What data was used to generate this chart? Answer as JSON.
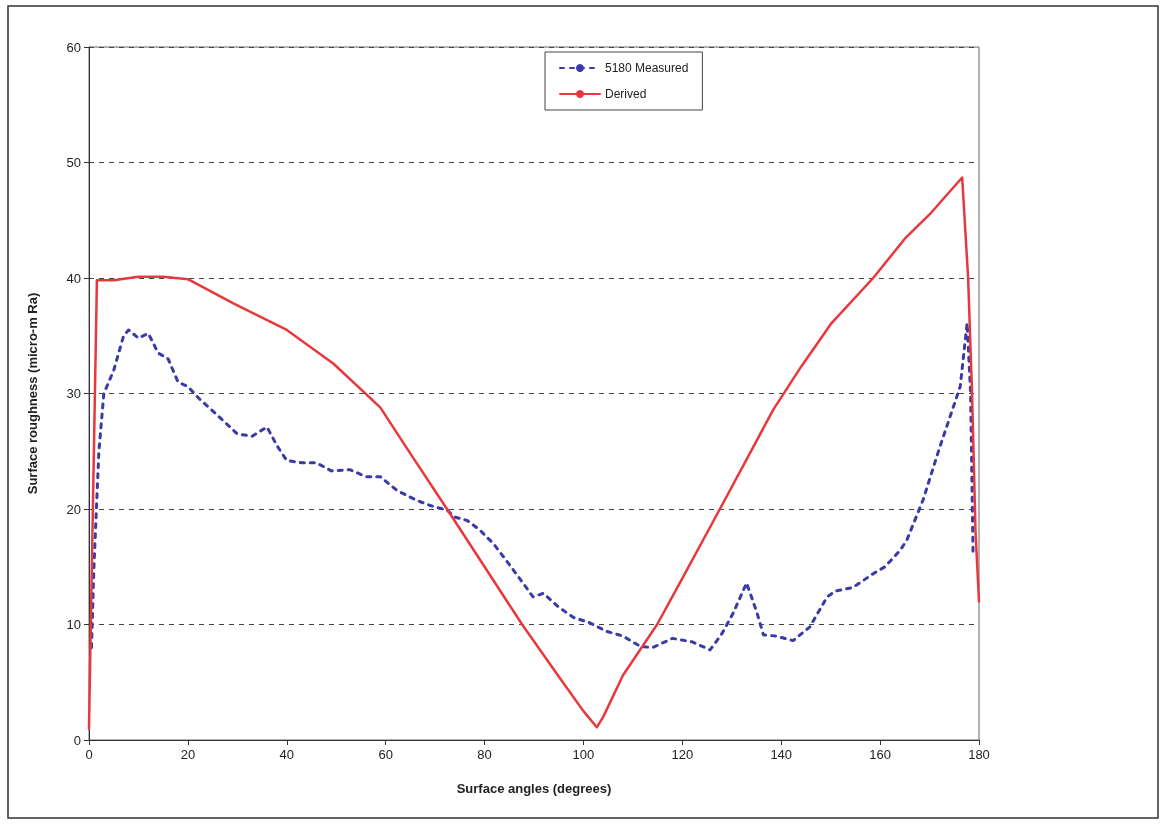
{
  "chart_data": {
    "type": "line",
    "xlabel": "Surface angles (degrees)",
    "ylabel": "Surface roughness (micro-m Ra)",
    "xlim": [
      0,
      180
    ],
    "xticks": [
      0,
      20,
      40,
      60,
      80,
      100,
      120,
      140,
      160,
      180
    ],
    "ylim": [
      0,
      60
    ],
    "yticks": [
      0,
      10,
      20,
      30,
      40,
      50,
      60
    ],
    "grid": "y",
    "legend": "top",
    "marker": "none",
    "series": [
      {
        "name": "5180 Measured",
        "color": "#3b3ba8",
        "line_style": "dashed",
        "x": [
          0.5,
          1,
          2,
          3,
          5,
          7,
          8,
          10,
          12,
          14,
          16,
          18,
          20,
          22.4,
          25,
          28,
          30,
          33,
          36,
          38,
          40,
          43,
          46,
          49,
          52.8,
          56,
          58.9,
          62.3,
          66,
          69,
          72.4,
          74,
          76.5,
          79,
          81.8,
          85,
          89.8,
          91.9,
          95,
          98,
          101,
          104.7,
          108,
          111.5,
          114,
          118,
          122,
          125.6,
          128,
          130.3,
          133,
          135.1,
          136.4,
          139,
          142.4,
          145.8,
          149.3,
          151,
          154.5,
          158.6,
          161,
          164,
          165.4,
          168.7,
          172.1,
          176.2,
          177.6,
          178.3,
          178.8
        ],
        "values": [
          8,
          15,
          25,
          30,
          32,
          35,
          35.5,
          34.8,
          35.2,
          33.5,
          33,
          31,
          30.6,
          29.5,
          28.5,
          27.3,
          26.5,
          26.3,
          27.1,
          25.5,
          24.2,
          24,
          24,
          23.3,
          23.4,
          22.8,
          22.8,
          21.6,
          20.8,
          20.3,
          19.9,
          19.3,
          19,
          18.2,
          17,
          15.2,
          12.4,
          12.7,
          11.5,
          10.6,
          10.2,
          9.4,
          9,
          8.1,
          8,
          8.8,
          8.5,
          7.8,
          9.2,
          11,
          13.6,
          11,
          9.1,
          9,
          8.6,
          9.8,
          12.4,
          12.9,
          13.2,
          14.4,
          15,
          16.4,
          17.3,
          20.8,
          25.4,
          30.6,
          36.1,
          30,
          16
        ]
      },
      {
        "name": "Derived",
        "color": "#e8383d",
        "line_style": "solid",
        "x": [
          0,
          1.6,
          5,
          10,
          15,
          20,
          29.2,
          40,
          49.4,
          58.9,
          65,
          72.4,
          80,
          87.6,
          95,
          100,
          102.7,
          104,
          108,
          114.9,
          120,
          127.6,
          133,
          138.4,
          144,
          150,
          158.6,
          165,
          170,
          176.6,
          177.8,
          178.6,
          179.3,
          180
        ],
        "values": [
          1,
          39.8,
          39.8,
          40.1,
          40.1,
          39.9,
          37.8,
          35.5,
          32.6,
          28.8,
          24.8,
          20,
          15,
          10,
          5.5,
          2.5,
          1.1,
          2,
          5.6,
          10,
          14,
          20,
          24.3,
          28.6,
          32.3,
          36,
          40,
          43.4,
          45.5,
          48.7,
          40,
          30,
          18,
          12
        ]
      }
    ]
  }
}
